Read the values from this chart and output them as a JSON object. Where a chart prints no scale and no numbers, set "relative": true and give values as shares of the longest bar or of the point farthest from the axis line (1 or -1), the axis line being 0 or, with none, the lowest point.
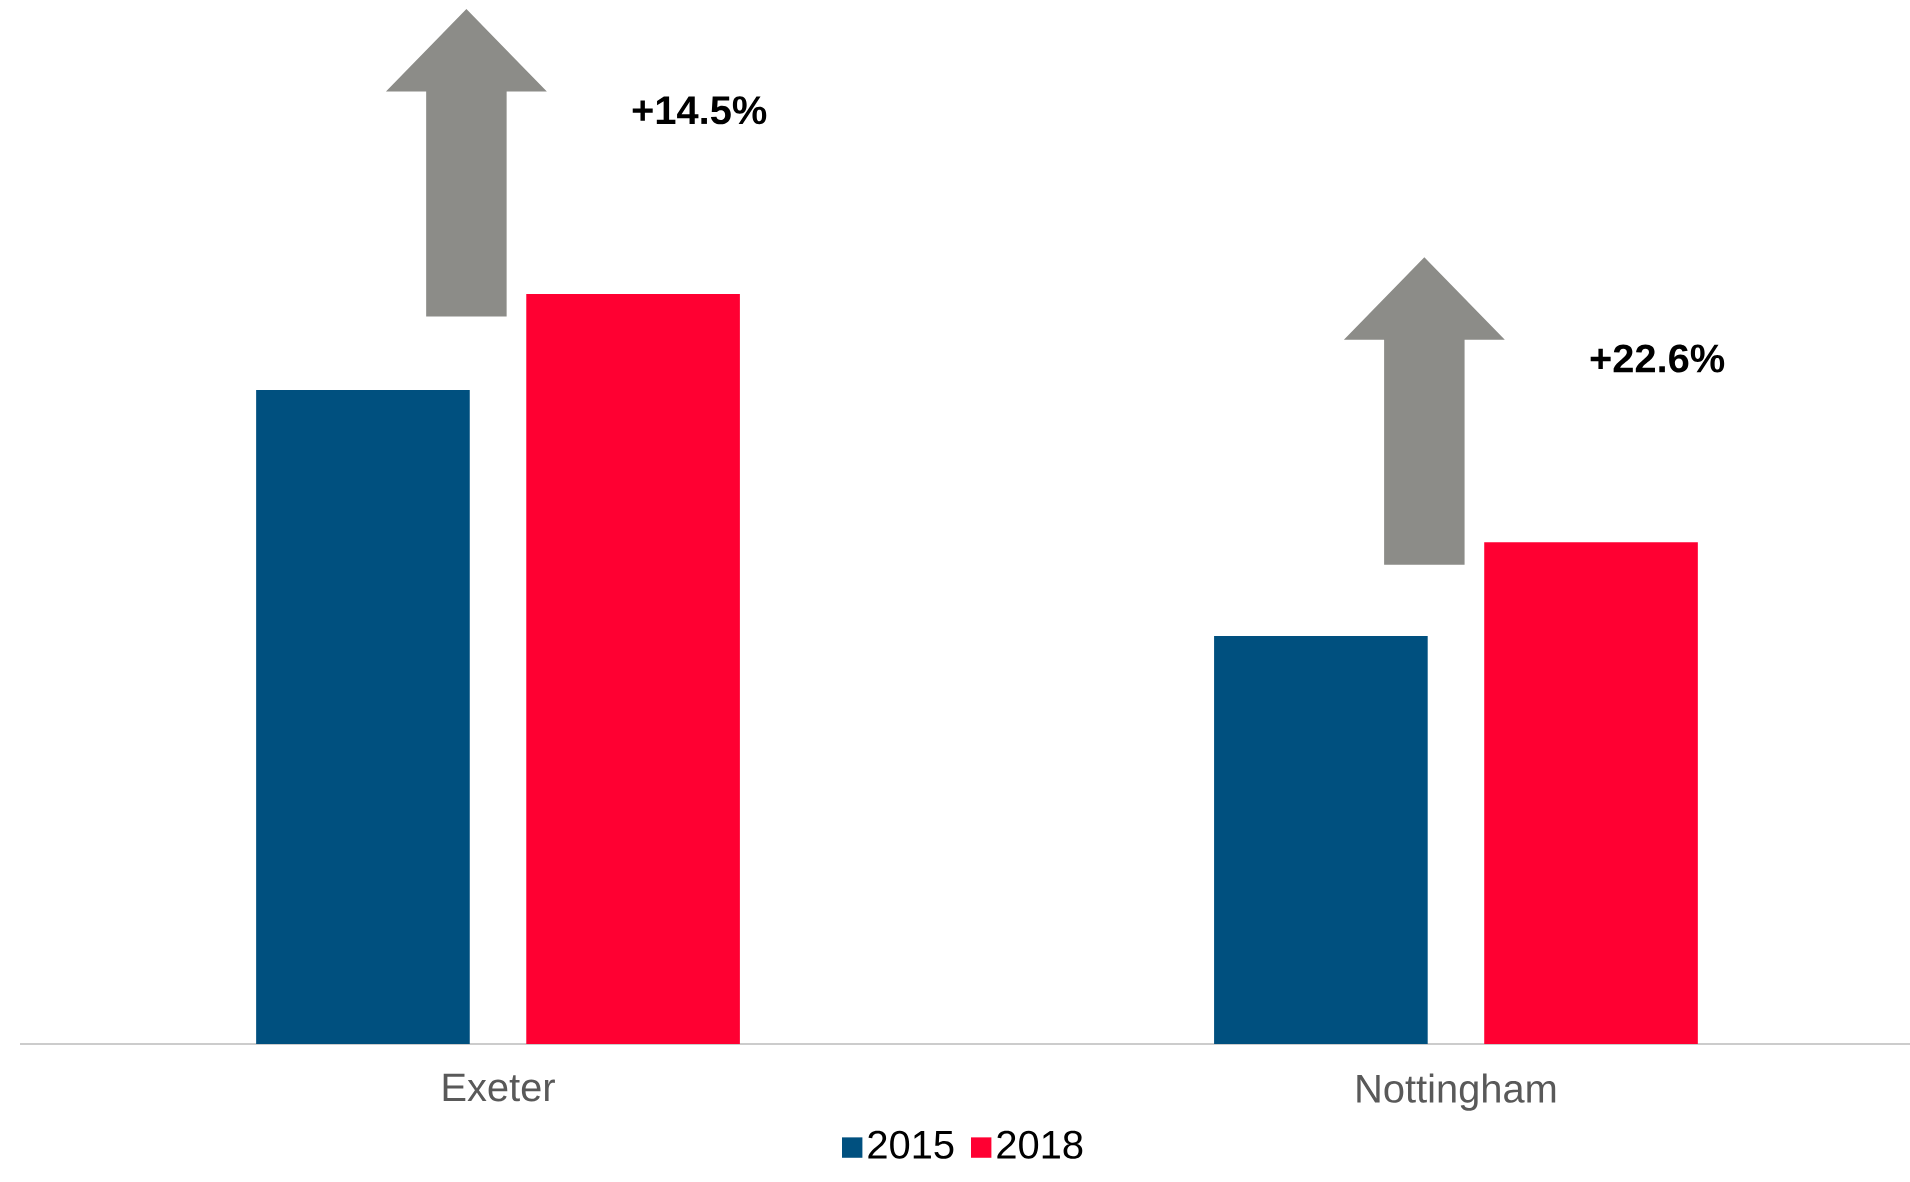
{
  "chart_data": {
    "type": "bar",
    "relative": true,
    "categories": [
      "Exeter",
      "Nottingham"
    ],
    "series": [
      {
        "name": "2015",
        "color": "#00507f",
        "values": [
          0.872,
          0.544
        ]
      },
      {
        "name": "2018",
        "color": "#ff0032",
        "values": [
          1.0,
          0.669
        ]
      }
    ],
    "annotations": [
      "+14.5%",
      "+22.6%"
    ],
    "legend": "bottom"
  }
}
